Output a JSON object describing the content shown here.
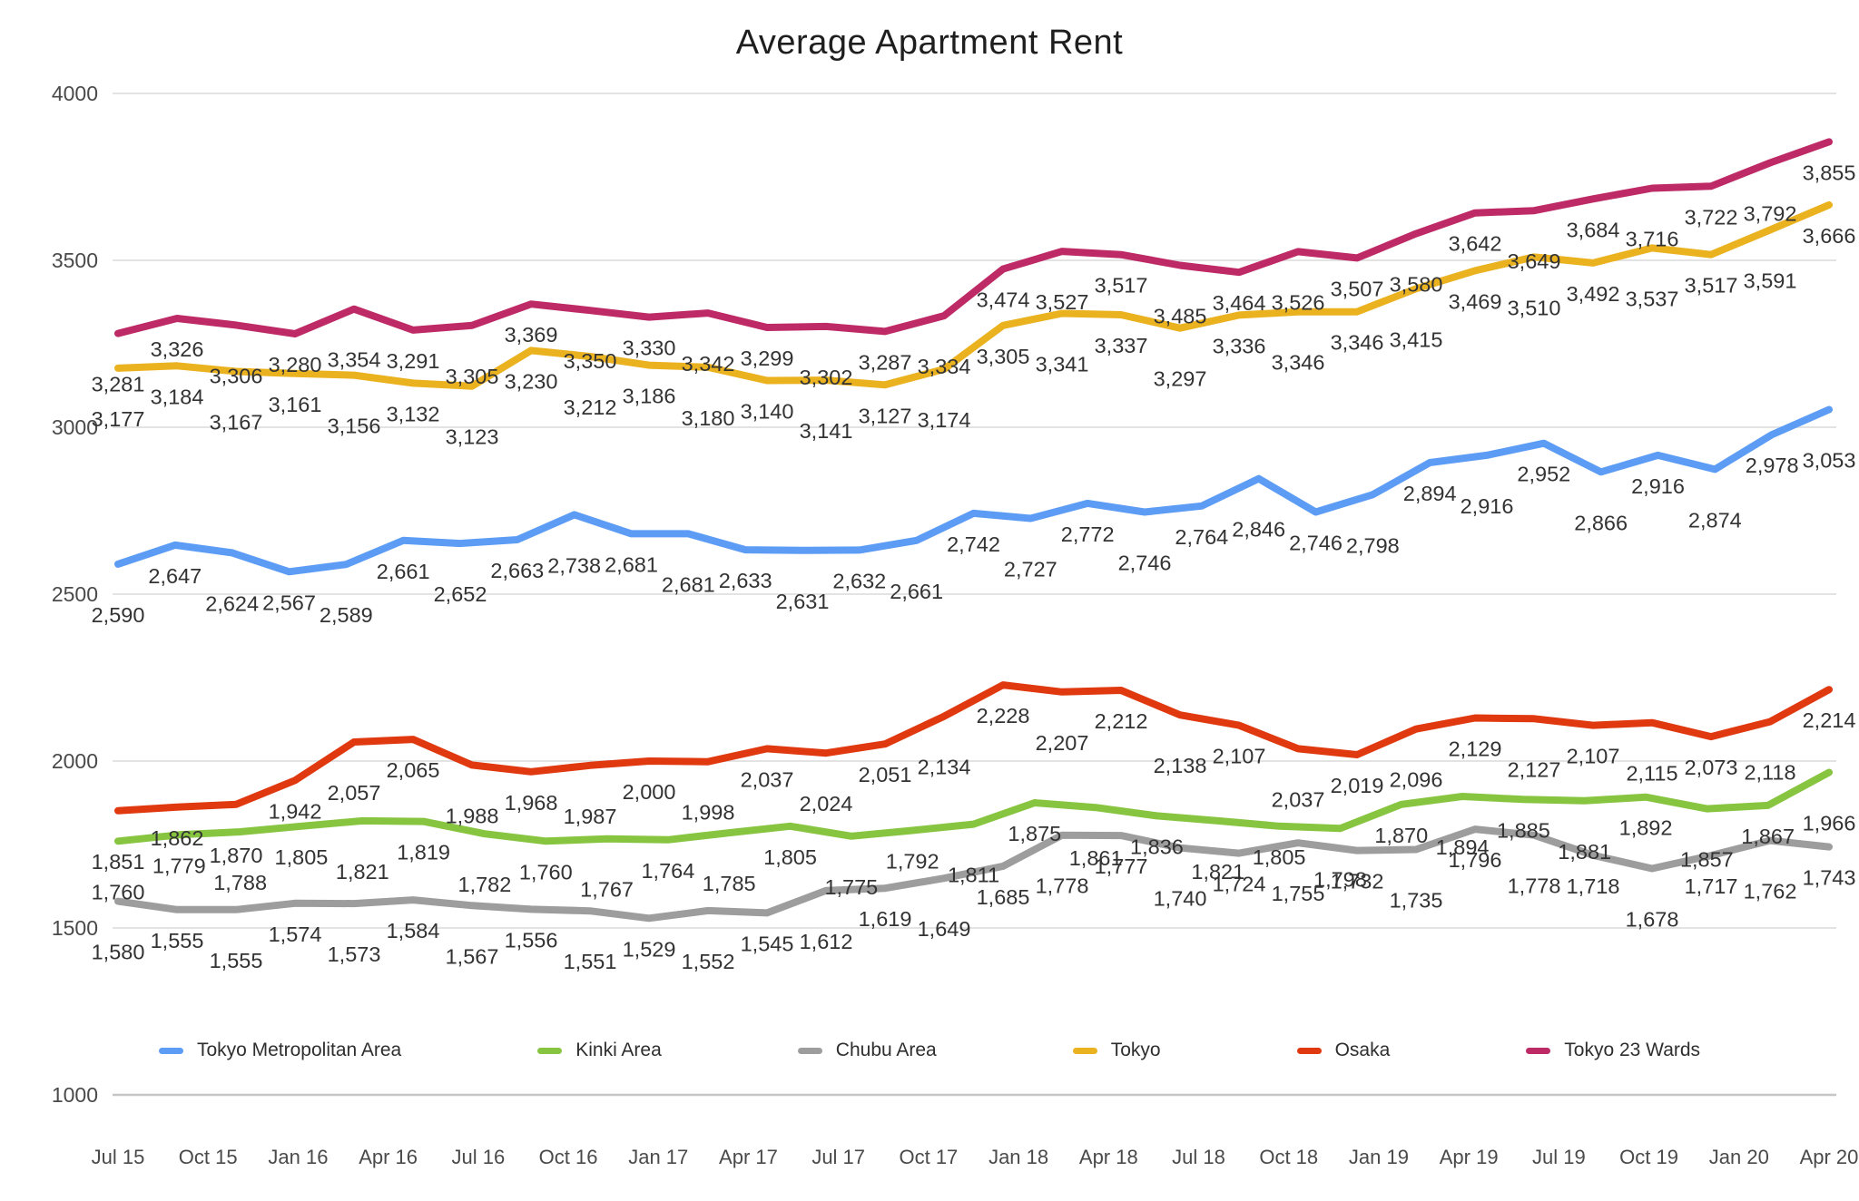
{
  "title": "Average Apartment Rent",
  "colors": {
    "grid_line": "#e3e3e3",
    "axis_line": "#c6c6c6",
    "axis_text": "#4a4a4a",
    "data_label_text": "#333333",
    "title_text": "#1e1e1e"
  },
  "chart_data": {
    "type": "line",
    "title": "Average Apartment Rent",
    "xlabel": "",
    "ylabel": "",
    "ylim": [
      1000,
      4000
    ],
    "y_ticks": [
      4000,
      3500,
      3000,
      2500,
      2000,
      1500,
      1000
    ],
    "x_tick_labels": [
      "Jul 15",
      "Oct 15",
      "Jan 16",
      "Apr 16",
      "Jul 16",
      "Oct 16",
      "Jan 17",
      "Apr 17",
      "Jul 17",
      "Oct 17",
      "Jan 18",
      "Apr 18",
      "Jul 18",
      "Oct 18",
      "Jan 19",
      "Apr 19",
      "Jul 19",
      "Oct 19",
      "Jan 20",
      "Apr 20"
    ],
    "grid": "horizontal",
    "legend_position": "bottom-center",
    "point_labels_visible": true,
    "series": [
      {
        "name": "Tokyo Metropolitan Area",
        "color": "#5C9CF5",
        "values": [
          2590,
          2647,
          2624,
          2567,
          2589,
          2661,
          2652,
          2663,
          2738,
          2681,
          2681,
          2633,
          2631,
          2632,
          2661,
          2742,
          2727,
          2772,
          2746,
          2764,
          2846,
          2746,
          2798,
          2894,
          2916,
          2952,
          2866,
          2916,
          2874,
          2978,
          3053
        ]
      },
      {
        "name": "Kinki Area",
        "color": "#87C540",
        "values": [
          1760,
          1779,
          1788,
          1805,
          1821,
          1819,
          1782,
          1760,
          1767,
          1764,
          1785,
          1805,
          1775,
          1792,
          1811,
          1875,
          1861,
          1836,
          1821,
          1805,
          1798,
          1870,
          1894,
          1885,
          1881,
          1892,
          1857,
          1867,
          1966
        ]
      },
      {
        "name": "Chubu Area",
        "color": "#9D9D9D",
        "values": [
          1580,
          1555,
          1555,
          1574,
          1573,
          1584,
          1567,
          1556,
          1551,
          1529,
          1552,
          1545,
          1612,
          1619,
          1649,
          1685,
          1778,
          1777,
          1740,
          1724,
          1755,
          1732,
          1735,
          1796,
          1778,
          1718,
          1678,
          1717,
          1762,
          1743
        ]
      },
      {
        "name": "Tokyo",
        "color": "#EBB220",
        "values": [
          3177,
          3184,
          3167,
          3161,
          3156,
          3132,
          3123,
          3230,
          3212,
          3186,
          3180,
          3140,
          3141,
          3127,
          3174,
          3305,
          3341,
          3337,
          3297,
          3336,
          3346,
          3346,
          3415,
          3469,
          3510,
          3492,
          3537,
          3517,
          3591,
          3666
        ]
      },
      {
        "name": "Osaka",
        "color": "#E0380F",
        "values": [
          1851,
          1862,
          1870,
          1942,
          2057,
          2065,
          1988,
          1968,
          1987,
          2000,
          1998,
          2037,
          2024,
          2051,
          2134,
          2228,
          2207,
          2212,
          2138,
          2107,
          2037,
          2019,
          2096,
          2129,
          2127,
          2107,
          2115,
          2073,
          2118,
          2214
        ]
      },
      {
        "name": "Tokyo 23 Wards",
        "color": "#BE2A66",
        "values": [
          3281,
          3326,
          3306,
          3280,
          3354,
          3291,
          3305,
          3369,
          3350,
          3330,
          3342,
          3299,
          3302,
          3287,
          3334,
          3474,
          3527,
          3517,
          3485,
          3464,
          3526,
          3507,
          3580,
          3642,
          3649,
          3684,
          3716,
          3722,
          3792,
          3855
        ]
      }
    ]
  }
}
